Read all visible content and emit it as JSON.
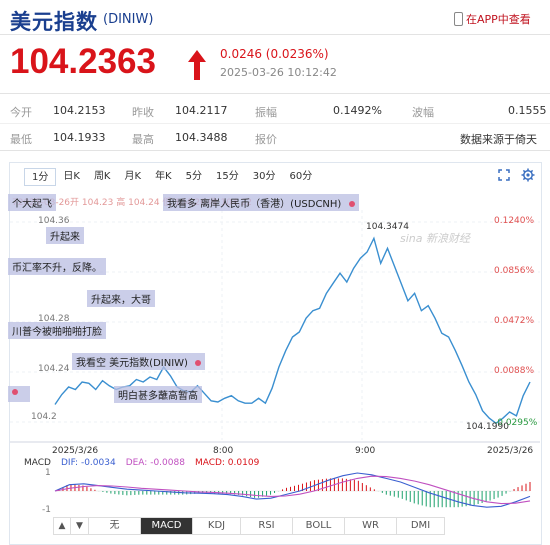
{
  "header": {
    "title": "美元指数",
    "code": "(DINIW)",
    "app_link": "在APP中查看",
    "price": "104.2363",
    "change": "0.0246 (0.0236%)",
    "timestamp": "2025-03-26 10:12:42"
  },
  "stats": {
    "row1": [
      {
        "label": "今开",
        "value": "104.2153"
      },
      {
        "label": "昨收",
        "value": "104.2117"
      },
      {
        "label": "振幅",
        "value": "0.1492%"
      },
      {
        "label": "波幅",
        "value": "0.1555"
      }
    ],
    "row2": [
      {
        "label": "最低",
        "value": "104.1933"
      },
      {
        "label": "最高",
        "value": "104.3488"
      },
      {
        "label": "报价",
        "value": ""
      },
      {
        "label": "",
        "value": "数据来源于倚天"
      }
    ]
  },
  "tabs": [
    "1分",
    "日K",
    "周K",
    "月K",
    "年K",
    "5分",
    "15分",
    "30分",
    "60分"
  ],
  "ticker_line": "72025-03-26开 104.23 高 104.24 低 104.20 收 104.22",
  "danmaku": [
    "个大起飞",
    "我看多 离岸人民币（香港）(USDCNH)",
    "升起来",
    "币汇率不升，反降。",
    "升起来，大哥",
    "川普今被啪啪啪打脸",
    "我看空 美元指数(DINIW)",
    "明白甚多蘸高暂高"
  ],
  "watermark": "sina 新浪财经",
  "chart_data": {
    "type": "line",
    "title": "",
    "x_labels": [
      "2025/3/26",
      "8:00",
      "9:00",
      "2025/3/26"
    ],
    "y_left_ticks": [
      "104.36",
      "104.32",
      "104.28",
      "104.24",
      "104.2"
    ],
    "y_right_ticks": [
      "0.1240%",
      "0.0856%",
      "0.0472%",
      "0.0088%",
      "-0.0295%"
    ],
    "ylim": [
      104.2,
      104.36
    ],
    "high_label": "104.3474",
    "low_label": "104.1990",
    "line_color": "#3a8fd0",
    "y": [
      104.214,
      104.222,
      104.228,
      104.226,
      104.232,
      104.231,
      104.226,
      104.233,
      104.229,
      104.226,
      104.228,
      104.229,
      104.234,
      104.232,
      104.236,
      104.234,
      104.244,
      104.237,
      104.228,
      104.225,
      104.224,
      104.229,
      104.223,
      104.217,
      104.216,
      104.219,
      104.221,
      104.217,
      104.215,
      104.215,
      104.219,
      104.215,
      104.227,
      104.244,
      104.257,
      104.268,
      104.272,
      104.283,
      104.289,
      104.291,
      104.303,
      104.311,
      104.319,
      104.312,
      104.323,
      104.331,
      104.336,
      104.347,
      104.327,
      104.339,
      104.325,
      104.311,
      104.297,
      104.303,
      104.289,
      104.293,
      104.283,
      104.271,
      104.268,
      104.257,
      104.245,
      104.232,
      104.222,
      104.209,
      104.203,
      104.199,
      104.203,
      104.208,
      104.205,
      104.221,
      104.232
    ],
    "macd": {
      "label": "MACD",
      "dif_label": "DIF: -0.0034",
      "dea_label": "DEA: -0.0088",
      "macd_label": "MACD: 0.0109",
      "y_ticks": [
        "1",
        "-1"
      ],
      "dif": [
        0.0,
        0.35,
        0.4,
        0.3,
        0.2,
        0.1,
        0.05,
        0.0,
        -0.05,
        -0.1,
        -0.12,
        -0.15,
        -0.2,
        -0.3,
        -0.45,
        -0.4,
        -0.2,
        0.0,
        0.3,
        0.6,
        0.85,
        1.0,
        0.9,
        0.7,
        0.5,
        0.2,
        -0.1,
        -0.35,
        -0.6,
        -0.8,
        -0.9,
        -0.85,
        -0.6,
        -0.3
      ],
      "dea": [
        0.0,
        0.15,
        0.25,
        0.3,
        0.28,
        0.22,
        0.15,
        0.1,
        0.05,
        0.0,
        -0.05,
        -0.08,
        -0.12,
        -0.18,
        -0.25,
        -0.3,
        -0.28,
        -0.18,
        0.0,
        0.25,
        0.5,
        0.7,
        0.82,
        0.8,
        0.7,
        0.55,
        0.35,
        0.1,
        -0.15,
        -0.4,
        -0.6,
        -0.7,
        -0.68,
        -0.55
      ],
      "dif_color": "#3a5fd0",
      "dea_color": "#c050c0",
      "up_color": "#d9141a",
      "down_color": "#1aa06a"
    }
  },
  "macd_tabs": [
    "无",
    "MACD",
    "KDJ",
    "RSI",
    "BOLL",
    "WR",
    "DMI"
  ],
  "colors": {
    "brand": "#1a3f8f",
    "up": "#d9141a"
  }
}
